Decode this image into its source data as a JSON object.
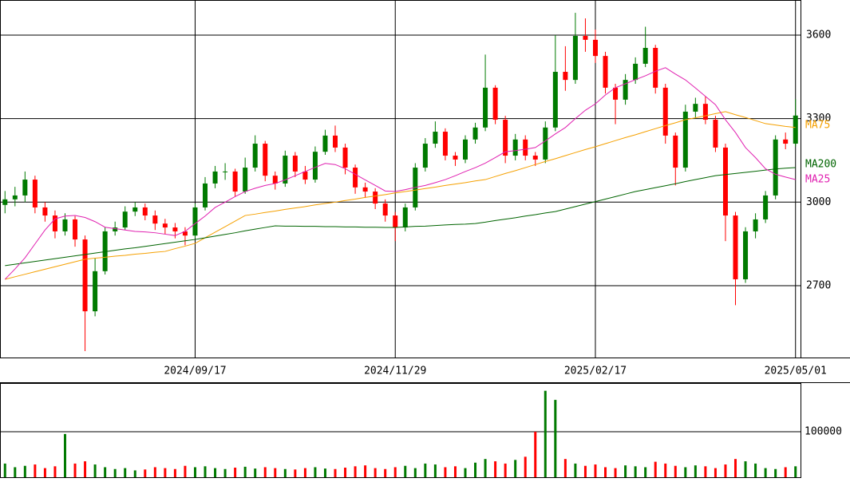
{
  "chart_data": {
    "type": "candlestick",
    "x": [
      null,
      null,
      null,
      null,
      null,
      null,
      null,
      null,
      null,
      null,
      null,
      null,
      null,
      null,
      null,
      null,
      null,
      null,
      null,
      "2024/09/17",
      null,
      null,
      null,
      null,
      null,
      null,
      null,
      null,
      null,
      null,
      null,
      null,
      null,
      null,
      null,
      null,
      null,
      null,
      null,
      "2024/11/29",
      null,
      null,
      null,
      null,
      null,
      null,
      null,
      null,
      null,
      null,
      null,
      null,
      null,
      null,
      null,
      null,
      null,
      null,
      null,
      "2025/02/17",
      null,
      null,
      null,
      null,
      null,
      null,
      null,
      null,
      null,
      null,
      null,
      null,
      null,
      null,
      null,
      null,
      null,
      null,
      null,
      "2025/05/01"
    ],
    "open": [
      2990,
      3010,
      3024,
      3081,
      2981,
      2952,
      2895,
      2938,
      2866,
      2608,
      2752,
      2895,
      2909,
      2966,
      2981,
      2952,
      2923,
      2909,
      2895,
      2880,
      2981,
      3067,
      3110,
      3110,
      3038,
      3124,
      3210,
      3095,
      3067,
      3167,
      3110,
      3081,
      3181,
      3239,
      3196,
      3124,
      3053,
      3038,
      2995,
      2952,
      2909,
      2981,
      3124,
      3210,
      3253,
      3167,
      3153,
      3225,
      3268,
      3411,
      3296,
      3167,
      3225,
      3167,
      3153,
      3268,
      3468,
      3439,
      3597,
      3583,
      3525,
      3411,
      3368,
      3439,
      3497,
      3554,
      3411,
      3239,
      3124,
      3325,
      3353,
      3296,
      3196,
      2952,
      2723,
      2895,
      2938,
      3024,
      3225,
      3210
    ],
    "high": [
      3040,
      3055,
      3110,
      3095,
      3000,
      2970,
      2960,
      2950,
      2880,
      2800,
      2910,
      2930,
      2985,
      3000,
      2995,
      2970,
      2940,
      2925,
      2910,
      2995,
      3090,
      3130,
      3140,
      3120,
      3160,
      3240,
      3220,
      3110,
      3185,
      3180,
      3130,
      3200,
      3260,
      3275,
      3210,
      3135,
      3070,
      3050,
      3010,
      2965,
      2995,
      3140,
      3230,
      3290,
      3265,
      3180,
      3240,
      3285,
      3530,
      3420,
      3310,
      3245,
      3240,
      3180,
      3290,
      3600,
      3560,
      3680,
      3660,
      3620,
      3540,
      3425,
      3460,
      3520,
      3630,
      3565,
      3425,
      3250,
      3350,
      3375,
      3380,
      3310,
      3210,
      2965,
      2910,
      2960,
      3040,
      3240,
      3250,
      3370
    ],
    "low": [
      2960,
      2985,
      3000,
      2960,
      2930,
      2870,
      2880,
      2840,
      2465,
      2590,
      2740,
      2880,
      2900,
      2950,
      2935,
      2900,
      2885,
      2870,
      2845,
      2870,
      2970,
      3050,
      3080,
      3020,
      3030,
      3110,
      3075,
      3045,
      3055,
      3090,
      3065,
      3070,
      3170,
      3180,
      3100,
      3030,
      3015,
      2975,
      2930,
      2860,
      2895,
      2970,
      3110,
      3195,
      3150,
      3130,
      3140,
      3210,
      3255,
      3280,
      3140,
      3150,
      3150,
      3130,
      3140,
      3255,
      3400,
      3425,
      3540,
      3500,
      3390,
      3280,
      3350,
      3425,
      3485,
      3390,
      3210,
      3060,
      3110,
      3300,
      3280,
      3180,
      2860,
      2630,
      2710,
      2870,
      2925,
      3010,
      3190,
      3200
    ],
    "close": [
      3010,
      3024,
      3081,
      2981,
      2952,
      2895,
      2938,
      2866,
      2608,
      2752,
      2895,
      2909,
      2966,
      2981,
      2952,
      2923,
      2909,
      2895,
      2880,
      2981,
      3067,
      3110,
      3110,
      3038,
      3124,
      3210,
      3095,
      3067,
      3167,
      3110,
      3081,
      3181,
      3239,
      3196,
      3124,
      3053,
      3038,
      2995,
      2952,
      2909,
      2981,
      3124,
      3210,
      3253,
      3167,
      3153,
      3225,
      3268,
      3411,
      3296,
      3167,
      3225,
      3167,
      3153,
      3268,
      3468,
      3439,
      3597,
      3583,
      3525,
      3411,
      3368,
      3439,
      3497,
      3554,
      3411,
      3239,
      3124,
      3325,
      3353,
      3296,
      3196,
      2952,
      2723,
      2895,
      2938,
      3024,
      3225,
      3210,
      3311
    ],
    "up_color": "#007a00",
    "down_color": "#ff0000",
    "ylim": [
      2442,
      3726
    ],
    "yticks": [
      2700,
      3000,
      3300,
      3600
    ],
    "grid": true,
    "moving_averages": [
      {
        "name": "MA75",
        "color": "#f5a000",
        "values": [
          2723,
          2732,
          2741,
          2750,
          2759,
          2768,
          2777,
          2786,
          2795,
          2799,
          2802,
          2806,
          2809,
          2813,
          2816,
          2820,
          2823,
          2833,
          2842,
          2852,
          2872,
          2892,
          2912,
          2932,
          2952,
          2957,
          2963,
          2968,
          2974,
          2979,
          2984,
          2990,
          2995,
          3000,
          3006,
          3011,
          3017,
          3022,
          3027,
          3033,
          3038,
          3043,
          3049,
          3054,
          3060,
          3065,
          3070,
          3076,
          3081,
          3092,
          3103,
          3113,
          3124,
          3135,
          3146,
          3156,
          3167,
          3178,
          3189,
          3199,
          3210,
          3221,
          3232,
          3242,
          3253,
          3264,
          3275,
          3285,
          3296,
          3303,
          3310,
          3318,
          3325,
          3314,
          3304,
          3293,
          3282,
          3277,
          3272,
          3268
        ]
      },
      {
        "name": "MA200",
        "color": "#006400",
        "values": [
          2772,
          2777,
          2782,
          2787,
          2792,
          2797,
          2802,
          2807,
          2812,
          2817,
          2822,
          2827,
          2832,
          2836,
          2841,
          2846,
          2851,
          2856,
          2861,
          2866,
          2872,
          2878,
          2884,
          2890,
          2897,
          2903,
          2909,
          2915,
          2914,
          2914,
          2913,
          2913,
          2912,
          2912,
          2911,
          2911,
          2910,
          2910,
          2909,
          2909,
          2911,
          2913,
          2914,
          2916,
          2918,
          2920,
          2921,
          2923,
          2928,
          2934,
          2939,
          2944,
          2950,
          2955,
          2961,
          2966,
          2975,
          2984,
          2993,
          3002,
          3011,
          3020,
          3029,
          3038,
          3045,
          3052,
          3059,
          3066,
          3074,
          3081,
          3088,
          3095,
          3099,
          3103,
          3107,
          3111,
          3115,
          3119,
          3122,
          3124
        ]
      },
      {
        "name": "MA25",
        "color": "#e020b0",
        "values": [
          2723,
          2760,
          2800,
          2850,
          2900,
          2940,
          2950,
          2952,
          2945,
          2930,
          2910,
          2905,
          2900,
          2895,
          2893,
          2890,
          2885,
          2880,
          2895,
          2923,
          2950,
          2981,
          3000,
          3020,
          3038,
          3050,
          3060,
          3067,
          3080,
          3095,
          3110,
          3125,
          3139,
          3135,
          3120,
          3100,
          3080,
          3060,
          3040,
          3038,
          3045,
          3053,
          3060,
          3070,
          3081,
          3095,
          3110,
          3124,
          3140,
          3160,
          3181,
          3185,
          3190,
          3196,
          3220,
          3245,
          3268,
          3300,
          3330,
          3353,
          3385,
          3411,
          3425,
          3440,
          3454,
          3470,
          3483,
          3460,
          3439,
          3410,
          3380,
          3350,
          3296,
          3250,
          3196,
          3160,
          3120,
          3100,
          3090,
          3081
        ]
      }
    ],
    "volume": {
      "values": [
        30000,
        22000,
        25000,
        28000,
        20000,
        24000,
        95000,
        30000,
        35000,
        28000,
        22000,
        18000,
        20000,
        15000,
        17000,
        22000,
        20000,
        18000,
        25000,
        22000,
        24000,
        20000,
        18000,
        21000,
        23000,
        19000,
        22000,
        20000,
        18000,
        17000,
        20000,
        22000,
        19000,
        18000,
        21000,
        24000,
        26000,
        20000,
        18000,
        22000,
        25000,
        20000,
        30000,
        28000,
        22000,
        24000,
        20000,
        32000,
        40000,
        35000,
        30000,
        38000,
        45000,
        100000,
        190000,
        170000,
        40000,
        30000,
        25000,
        28000,
        22000,
        20000,
        26000,
        24000,
        22000,
        34000,
        30000,
        25000,
        22000,
        26000,
        24000,
        20000,
        28000,
        40000,
        35000,
        30000,
        20000,
        18000,
        22000,
        24000
      ],
      "ylim": [
        0,
        207000
      ],
      "yticks": [
        100000
      ]
    }
  }
}
